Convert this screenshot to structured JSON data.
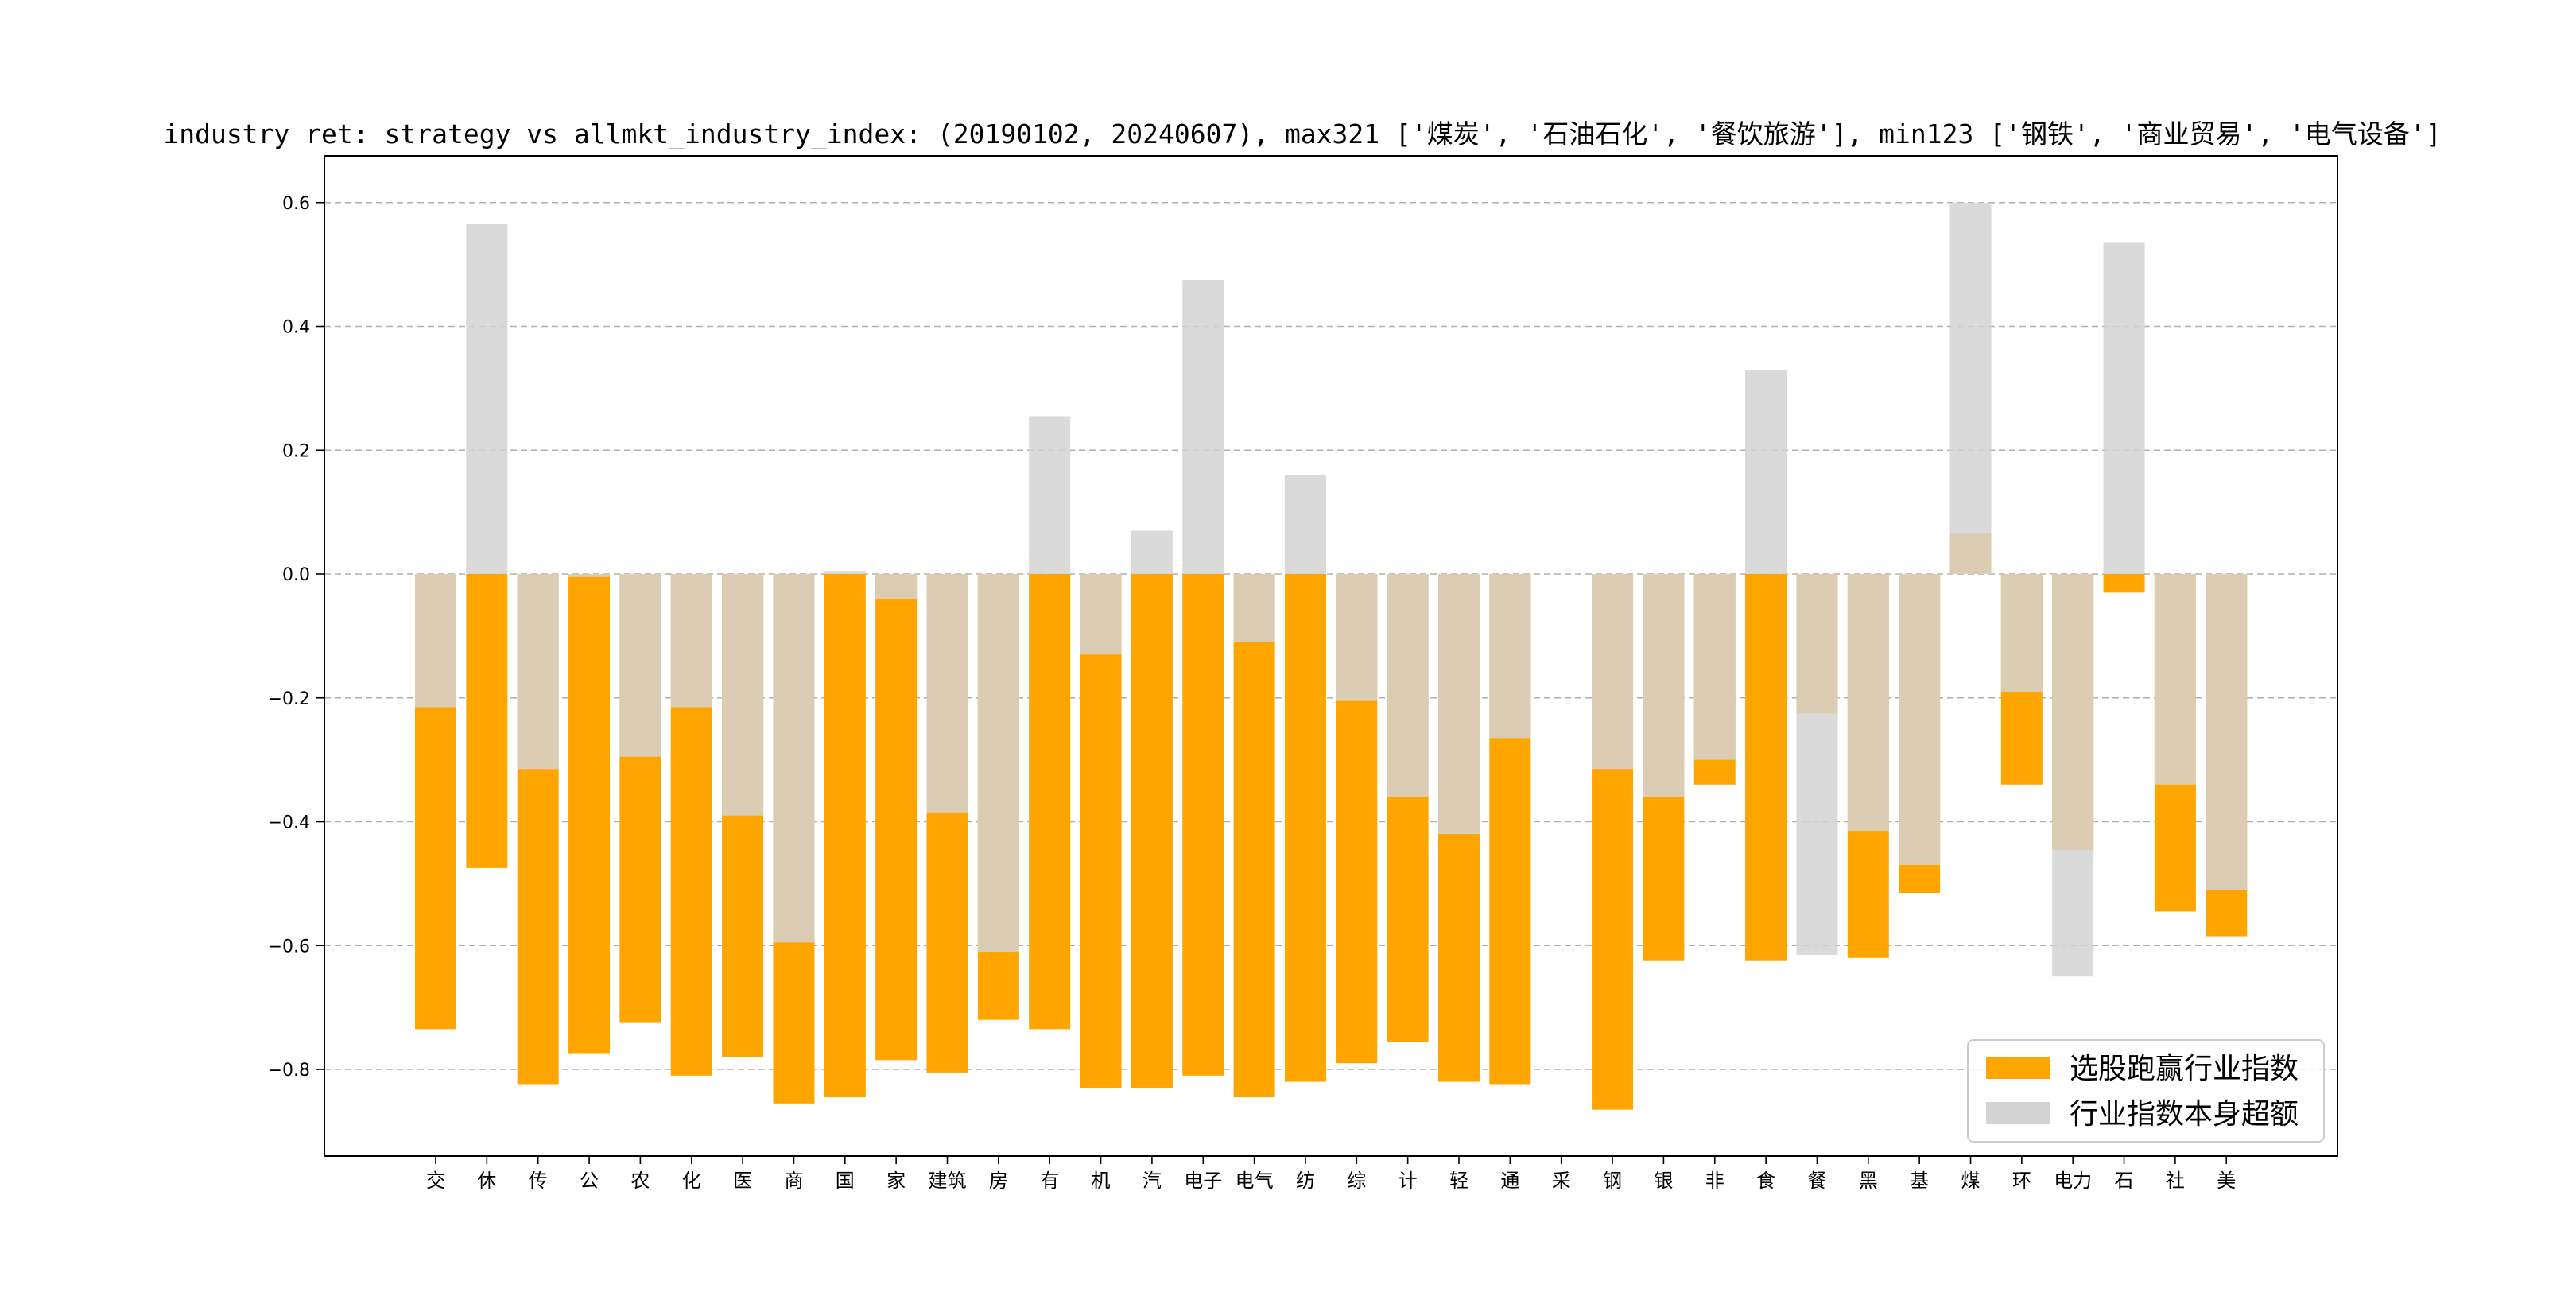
{
  "chart_data": {
    "type": "bar",
    "title": "industry ret: strategy vs allmkt_industry_index: (20190102, 20240607), max321 ['煤炭', '石油石化', '餐饮旅游'], min123 ['钢铁', '商业贸易', '电气设备']",
    "xlabel": "",
    "ylabel": "",
    "ylim": [
      -0.94,
      0.67
    ],
    "yticks": [
      0.6,
      0.4,
      0.2,
      0.0,
      -0.2,
      -0.4,
      -0.6,
      -0.8
    ],
    "ytick_labels": [
      "0.6",
      "0.4",
      "0.2",
      "0.0",
      "−0.2",
      "−0.4",
      "−0.6",
      "−0.8"
    ],
    "grid": "y-dashed",
    "legend_position": "lower-right",
    "categories": [
      "交",
      "休",
      "传",
      "公",
      "农",
      "化",
      "医",
      "商",
      "国",
      "家",
      "建筑",
      "房",
      "有",
      "机",
      "汽",
      "电子",
      "电气",
      "纺",
      "综",
      "计",
      "轻",
      "通",
      "采",
      "钢",
      "银",
      "非",
      "食",
      "餐",
      "黑",
      "基",
      "煤",
      "环",
      "电力",
      "石",
      "社",
      "美"
    ],
    "series": [
      {
        "name": "选股跑赢行业指数",
        "color": "#ffa500",
        "values": [
          -0.735,
          -0.475,
          -0.825,
          -0.775,
          -0.725,
          -0.81,
          -0.78,
          -0.855,
          -0.845,
          -0.785,
          -0.805,
          -0.72,
          -0.735,
          -0.83,
          -0.83,
          -0.81,
          -0.845,
          -0.82,
          -0.79,
          -0.755,
          -0.82,
          -0.825,
          0.0,
          -0.865,
          -0.625,
          -0.34,
          -0.625,
          -0.225,
          -0.62,
          -0.515,
          0.065,
          -0.34,
          -0.445,
          -0.03,
          -0.545,
          -0.585
        ]
      },
      {
        "name": "行业指数本身超额",
        "color": "#d3d3d3",
        "values": [
          -0.215,
          0.565,
          -0.315,
          -0.005,
          -0.295,
          -0.215,
          -0.39,
          -0.595,
          0.005,
          -0.04,
          -0.385,
          -0.61,
          0.255,
          -0.13,
          0.07,
          0.475,
          -0.11,
          0.16,
          -0.205,
          -0.36,
          -0.42,
          -0.265,
          0.0,
          -0.315,
          -0.36,
          -0.3,
          0.33,
          -0.615,
          -0.415,
          -0.47,
          0.6,
          -0.19,
          -0.65,
          0.535,
          -0.34,
          -0.51
        ]
      }
    ]
  }
}
